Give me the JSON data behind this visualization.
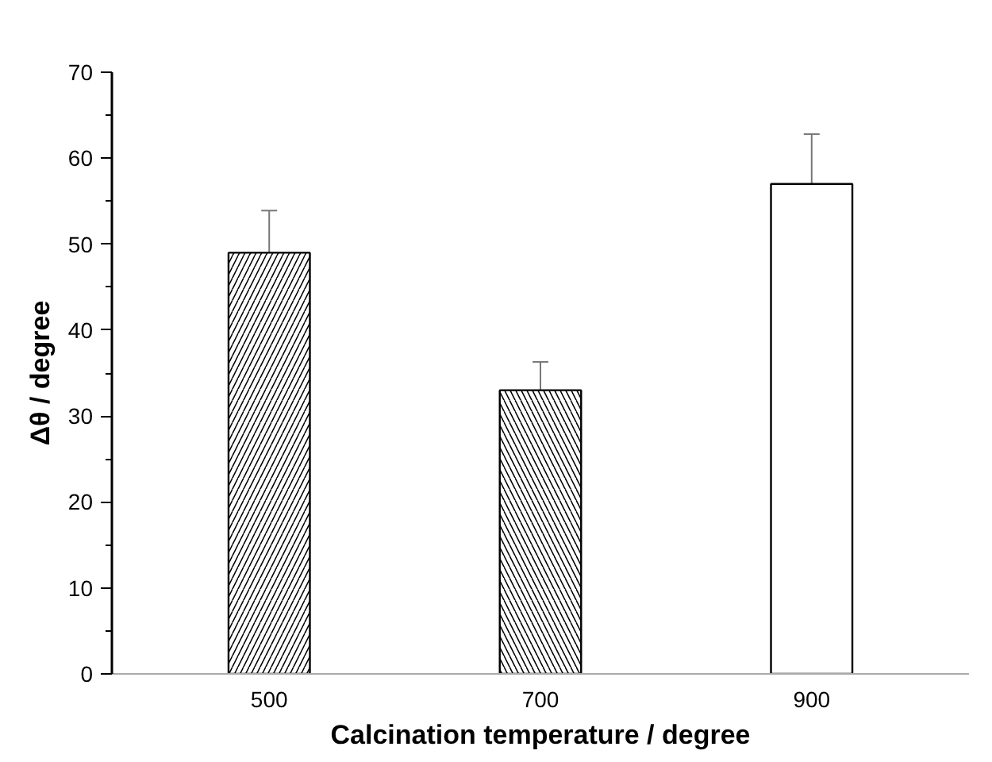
{
  "chart_data": {
    "type": "bar",
    "xlabel": "Calcination temperature / degree",
    "ylabel": "Δθ / degree",
    "categories": [
      "500",
      "700",
      "900"
    ],
    "values": [
      49,
      33,
      57
    ],
    "colors": [
      "#ffffff",
      "#ffffff",
      "#ffffff"
    ],
    "errors": [
      [
        49,
        53.9
      ],
      [
        33,
        36.3
      ],
      [
        57,
        62.8
      ]
    ],
    "ylim": [
      0,
      70
    ],
    "yticks": [
      0,
      10,
      20,
      30,
      40,
      50,
      60,
      70
    ],
    "grid": false
  }
}
